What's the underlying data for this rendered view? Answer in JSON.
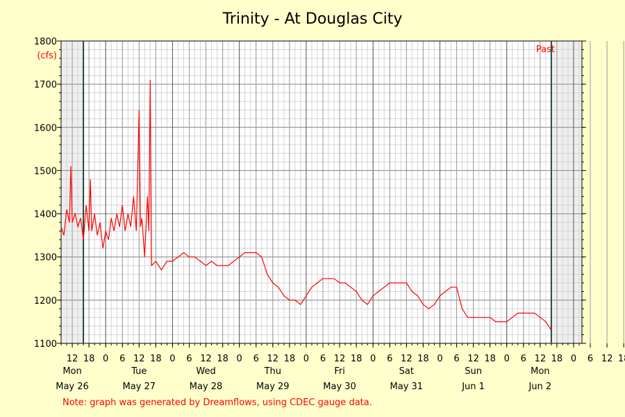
{
  "chart_data": {
    "type": "line",
    "title": "Trinity - At Douglas City",
    "ylabel": "(cfs)",
    "ylim": [
      1100,
      1800
    ],
    "y_ticks": [
      "1100",
      "1200",
      "1300",
      "1400",
      "1500",
      "1600",
      "1700",
      "1800"
    ],
    "x_range": [
      "May 26 08:00",
      "Jun 3 03:00"
    ],
    "x_hour_ticks": [
      "12",
      "18",
      "0",
      "6",
      "12",
      "18",
      "0",
      "6",
      "12",
      "18",
      "0",
      "6",
      "12",
      "18",
      "0",
      "6",
      "12",
      "18",
      "0",
      "6",
      "12",
      "18",
      "0",
      "6",
      "12",
      "18",
      "0",
      "6",
      "12",
      "18",
      "0",
      "6",
      "12",
      "18",
      "0"
    ],
    "day_labels": [
      {
        "day": "Mon",
        "date": "May 26"
      },
      {
        "day": "Tue",
        "date": "May 27"
      },
      {
        "day": "Wed",
        "date": "May 28"
      },
      {
        "day": "Thu",
        "date": "May 29"
      },
      {
        "day": "Fri",
        "date": "May 30"
      },
      {
        "day": "Sat",
        "date": "May 31"
      },
      {
        "day": "Sun",
        "date": "Jun 1"
      },
      {
        "day": "Mon",
        "date": "Jun 2"
      }
    ],
    "shaded_regions": [
      [
        "May 26 08:00",
        "May 26 16:00"
      ],
      [
        "Jun 2 16:00",
        "Jun 3 03:00"
      ]
    ],
    "past_label": "Past",
    "grid": true,
    "series": [
      {
        "color": "#ff0000",
        "points": [
          [
            "May 26 08:00",
            1370
          ],
          [
            "May 26 09:00",
            1350
          ],
          [
            "May 26 10:00",
            1410
          ],
          [
            "May 26 11:00",
            1380
          ],
          [
            "May 26 11:30",
            1510
          ],
          [
            "May 26 12:00",
            1380
          ],
          [
            "May 26 13:00",
            1400
          ],
          [
            "May 26 14:00",
            1370
          ],
          [
            "May 26 15:00",
            1390
          ],
          [
            "May 26 16:00",
            1340
          ],
          [
            "May 26 17:00",
            1420
          ],
          [
            "May 26 18:00",
            1360
          ],
          [
            "May 26 18:30",
            1480
          ],
          [
            "May 26 19:00",
            1360
          ],
          [
            "May 26 20:00",
            1400
          ],
          [
            "May 26 21:00",
            1350
          ],
          [
            "May 26 22:00",
            1380
          ],
          [
            "May 26 23:00",
            1320
          ],
          [
            "May 27 00:00",
            1360
          ],
          [
            "May 27 01:00",
            1340
          ],
          [
            "May 27 02:00",
            1390
          ],
          [
            "May 27 03:00",
            1360
          ],
          [
            "May 27 04:00",
            1400
          ],
          [
            "May 27 05:00",
            1370
          ],
          [
            "May 27 06:00",
            1420
          ],
          [
            "May 27 07:00",
            1360
          ],
          [
            "May 27 08:00",
            1400
          ],
          [
            "May 27 09:00",
            1370
          ],
          [
            "May 27 10:00",
            1440
          ],
          [
            "May 27 11:00",
            1360
          ],
          [
            "May 27 12:00",
            1640
          ],
          [
            "May 27 12:30",
            1370
          ],
          [
            "May 27 13:00",
            1390
          ],
          [
            "May 27 14:00",
            1300
          ],
          [
            "May 27 15:00",
            1440
          ],
          [
            "May 27 15:30",
            1360
          ],
          [
            "May 27 16:00",
            1710
          ],
          [
            "May 27 16:30",
            1280
          ],
          [
            "May 27 18:00",
            1290
          ],
          [
            "May 27 20:00",
            1270
          ],
          [
            "May 27 22:00",
            1290
          ],
          [
            "May 28 00:00",
            1290
          ],
          [
            "May 28 02:00",
            1300
          ],
          [
            "May 28 04:00",
            1310
          ],
          [
            "May 28 06:00",
            1300
          ],
          [
            "May 28 08:00",
            1300
          ],
          [
            "May 28 10:00",
            1290
          ],
          [
            "May 28 12:00",
            1280
          ],
          [
            "May 28 14:00",
            1290
          ],
          [
            "May 28 16:00",
            1280
          ],
          [
            "May 28 18:00",
            1280
          ],
          [
            "May 28 20:00",
            1280
          ],
          [
            "May 28 22:00",
            1290
          ],
          [
            "May 29 00:00",
            1300
          ],
          [
            "May 29 02:00",
            1310
          ],
          [
            "May 29 04:00",
            1310
          ],
          [
            "May 29 06:00",
            1310
          ],
          [
            "May 29 08:00",
            1300
          ],
          [
            "May 29 10:00",
            1260
          ],
          [
            "May 29 12:00",
            1240
          ],
          [
            "May 29 14:00",
            1230
          ],
          [
            "May 29 16:00",
            1210
          ],
          [
            "May 29 18:00",
            1200
          ],
          [
            "May 29 20:00",
            1200
          ],
          [
            "May 29 22:00",
            1190
          ],
          [
            "May 30 00:00",
            1210
          ],
          [
            "May 30 02:00",
            1230
          ],
          [
            "May 30 04:00",
            1240
          ],
          [
            "May 30 06:00",
            1250
          ],
          [
            "May 30 08:00",
            1250
          ],
          [
            "May 30 10:00",
            1250
          ],
          [
            "May 30 12:00",
            1240
          ],
          [
            "May 30 14:00",
            1240
          ],
          [
            "May 30 16:00",
            1230
          ],
          [
            "May 30 18:00",
            1220
          ],
          [
            "May 30 20:00",
            1200
          ],
          [
            "May 30 22:00",
            1190
          ],
          [
            "May 31 00:00",
            1210
          ],
          [
            "May 31 02:00",
            1220
          ],
          [
            "May 31 04:00",
            1230
          ],
          [
            "May 31 06:00",
            1240
          ],
          [
            "May 31 08:00",
            1240
          ],
          [
            "May 31 10:00",
            1240
          ],
          [
            "May 31 12:00",
            1240
          ],
          [
            "May 31 14:00",
            1220
          ],
          [
            "May 31 16:00",
            1210
          ],
          [
            "May 31 18:00",
            1190
          ],
          [
            "May 31 20:00",
            1180
          ],
          [
            "May 31 22:00",
            1190
          ],
          [
            "Jun 1 00:00",
            1210
          ],
          [
            "Jun 1 02:00",
            1220
          ],
          [
            "Jun 1 04:00",
            1230
          ],
          [
            "Jun 1 06:00",
            1230
          ],
          [
            "Jun 1 08:00",
            1180
          ],
          [
            "Jun 1 10:00",
            1160
          ],
          [
            "Jun 1 12:00",
            1160
          ],
          [
            "Jun 1 14:00",
            1160
          ],
          [
            "Jun 1 16:00",
            1160
          ],
          [
            "Jun 1 18:00",
            1160
          ],
          [
            "Jun 1 20:00",
            1150
          ],
          [
            "Jun 1 22:00",
            1150
          ],
          [
            "Jun 2 00:00",
            1150
          ],
          [
            "Jun 2 02:00",
            1160
          ],
          [
            "Jun 2 04:00",
            1170
          ],
          [
            "Jun 2 06:00",
            1170
          ],
          [
            "Jun 2 08:00",
            1170
          ],
          [
            "Jun 2 10:00",
            1170
          ],
          [
            "Jun 2 12:00",
            1160
          ],
          [
            "Jun 2 14:00",
            1150
          ],
          [
            "Jun 2 15:00",
            1140
          ],
          [
            "Jun 2 16:00",
            1130
          ]
        ]
      }
    ]
  },
  "note": "Note: graph was generated by Dreamflows, using CDEC gauge data."
}
